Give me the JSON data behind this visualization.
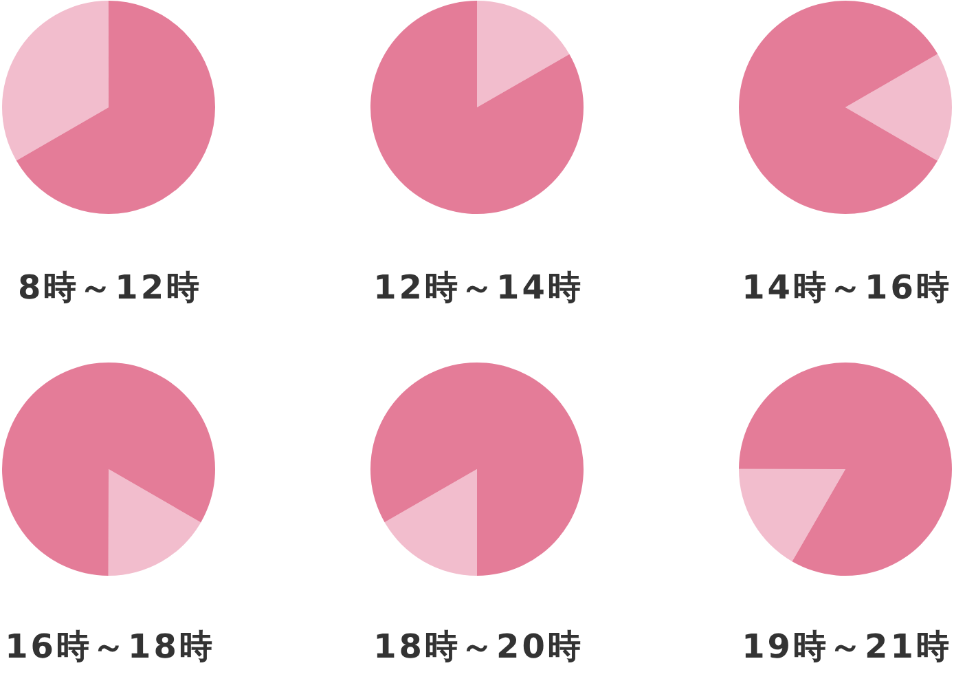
{
  "chart_data": [
    {
      "type": "pie",
      "title": "8時～12時",
      "categories": [
        null,
        null
      ],
      "values": [
        33.3,
        66.7
      ],
      "colors": [
        "#f2bdcd",
        "#e47c98"
      ]
    },
    {
      "type": "pie",
      "title": "12時～14時",
      "categories": [
        null,
        null
      ],
      "values": [
        16.7,
        83.3
      ],
      "colors": [
        "#f2bdcd",
        "#e47c98"
      ]
    },
    {
      "type": "pie",
      "title": "14時～16時",
      "categories": [
        null,
        null
      ],
      "values": [
        16.7,
        83.3
      ],
      "colors": [
        "#f2bdcd",
        "#e47c98"
      ]
    },
    {
      "type": "pie",
      "title": "16時～18時",
      "categories": [
        null,
        null
      ],
      "values": [
        16.7,
        83.3
      ],
      "colors": [
        "#f2bdcd",
        "#e47c98"
      ]
    },
    {
      "type": "pie",
      "title": "18時～20時",
      "categories": [
        null,
        null
      ],
      "values": [
        16.7,
        83.3
      ],
      "colors": [
        "#f2bdcd",
        "#e47c98"
      ]
    },
    {
      "type": "pie",
      "title": "19時～21時",
      "categories": [
        null,
        null
      ],
      "values": [
        16.7,
        83.3
      ],
      "colors": [
        "#f2bdcd",
        "#e47c98"
      ]
    }
  ]
}
